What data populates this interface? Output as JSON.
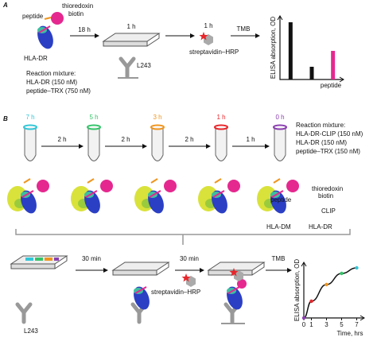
{
  "panel_a": {
    "letter": "A",
    "peptide": "peptide",
    "thioredoxin": "thioredoxin",
    "biotin": "biotin",
    "hla_dr": "HLA-DR",
    "step1": "18 h",
    "step2": "1 h",
    "antibody": "L243",
    "step3": "1 h",
    "streptavidin": "streptavidin–HRP",
    "step4": "TMB",
    "mixture": [
      "Reaction mixture:",
      "HLA-DR (150 nM)",
      "peptide–TRX (750 nM)"
    ]
  },
  "panel_b": {
    "letter": "B",
    "tubes": [
      {
        "label": "7 h",
        "color": "#33c6d6"
      },
      {
        "label": "5 h",
        "color": "#35c46a"
      },
      {
        "label": "3 h",
        "color": "#f0951e"
      },
      {
        "label": "1 h",
        "color": "#e8262b"
      },
      {
        "label": "0 h",
        "color": "#8b3fb0"
      }
    ],
    "intervals": [
      "2 h",
      "2 h",
      "2 h",
      "1 h"
    ],
    "mixture": [
      "Reaction mixture:",
      "HLA-DR-CLIP (150 nM)",
      "HLA-DR (150 nM)",
      "peptide–TRX (150 nM)"
    ],
    "peptide": "peptide",
    "thioredoxin": "thioredoxin",
    "biotin": "biotin",
    "clip": "CLIP",
    "hla_dm": "HLA-DM",
    "hla_dr": "HLA-DR",
    "step1": "30 min",
    "step2": "30 min",
    "step3": "TMB",
    "streptavidin": "streptavidin–HRP",
    "antibody": "L243"
  },
  "chart_data": [
    {
      "type": "bar",
      "y_label": "ELISA absorption, OD",
      "x_label": "peptide",
      "categories": [
        null,
        null,
        null
      ],
      "values": [
        0.9,
        0.2,
        0.45
      ],
      "colors": [
        "#111111",
        "#111111",
        "#e5288f"
      ],
      "ylim": [
        0,
        1
      ]
    },
    {
      "type": "line",
      "y_label": "ELISA absorption, OD",
      "x_label": "Time, hrs",
      "x": [
        0,
        1,
        3,
        5,
        7
      ],
      "values": [
        0,
        0.3,
        0.6,
        0.8,
        0.9
      ],
      "point_colors": [
        "#8b3fb0",
        "#e8262b",
        "#f0951e",
        "#35c46a",
        "#33c6d6"
      ],
      "color": "#111111",
      "xlim": [
        0,
        8
      ],
      "ylim": [
        0,
        1
      ],
      "xticks": [
        0,
        1,
        3,
        5,
        7
      ]
    }
  ]
}
